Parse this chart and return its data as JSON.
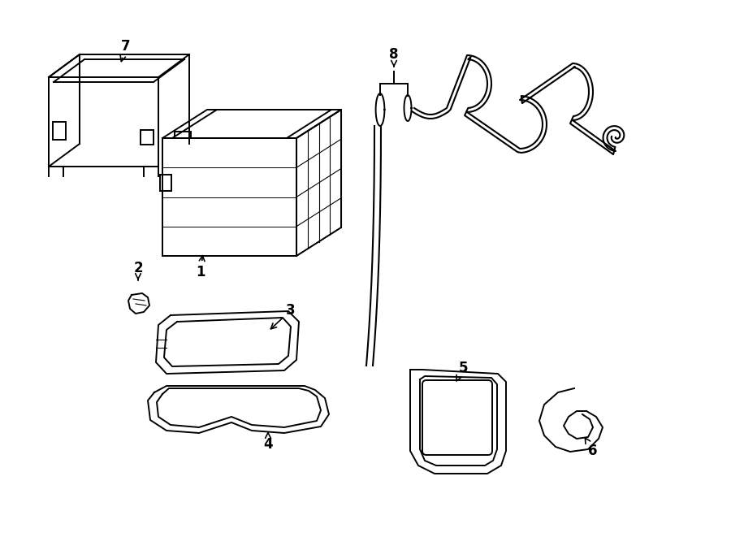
{
  "background_color": "#ffffff",
  "line_color": "#000000",
  "figsize": [
    9.0,
    6.61
  ],
  "dpi": 100
}
